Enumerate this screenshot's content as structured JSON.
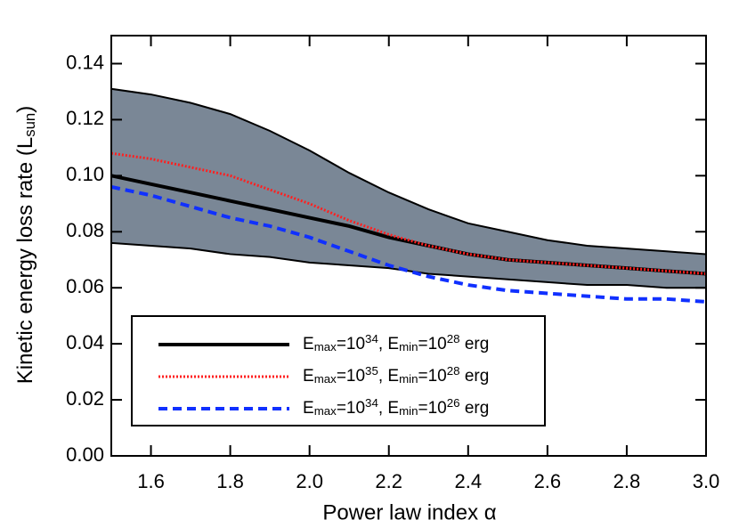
{
  "chart_data": {
    "type": "line",
    "x_label": "Power law index α",
    "y_label": "Kinetic energy loss rate (L_sun)",
    "x": [
      1.5,
      1.6,
      1.7,
      1.8,
      1.9,
      2.0,
      2.1,
      2.2,
      2.3,
      2.4,
      2.5,
      2.6,
      2.7,
      2.8,
      2.9,
      3.0
    ],
    "band": {
      "color": "#7a8796",
      "upper": [
        0.131,
        0.129,
        0.126,
        0.122,
        0.116,
        0.109,
        0.101,
        0.094,
        0.088,
        0.083,
        0.08,
        0.077,
        0.075,
        0.074,
        0.073,
        0.072
      ],
      "lower": [
        0.076,
        0.075,
        0.074,
        0.072,
        0.071,
        0.069,
        0.068,
        0.067,
        0.065,
        0.064,
        0.063,
        0.062,
        0.061,
        0.061,
        0.06,
        0.06
      ]
    },
    "series": [
      {
        "name": "E_max=10^34, E_min=10^28 erg",
        "color": "#000000",
        "style": "solid",
        "values": [
          0.1,
          0.097,
          0.094,
          0.091,
          0.088,
          0.085,
          0.082,
          0.078,
          0.075,
          0.072,
          0.07,
          0.069,
          0.068,
          0.067,
          0.066,
          0.065
        ]
      },
      {
        "name": "E_max=10^35, E_min=10^28 erg",
        "color": "#ff2020",
        "style": "dotted",
        "values": [
          0.108,
          0.106,
          0.103,
          0.1,
          0.095,
          0.09,
          0.084,
          0.079,
          0.075,
          0.072,
          0.07,
          0.069,
          0.068,
          0.067,
          0.066,
          0.065
        ]
      },
      {
        "name": "E_max=10^34, E_min=10^26 erg",
        "color": "#1030ff",
        "style": "dashed",
        "values": [
          0.096,
          0.093,
          0.089,
          0.085,
          0.082,
          0.078,
          0.073,
          0.068,
          0.064,
          0.061,
          0.059,
          0.058,
          0.057,
          0.056,
          0.056,
          0.055
        ]
      }
    ],
    "xlim": [
      1.5,
      3.0
    ],
    "ylim": [
      0.0,
      0.15
    ],
    "xticks": [
      1.6,
      1.8,
      {
        "value": 2.0,
        "label": "2.0"
      },
      2.2,
      2.4,
      2.6,
      2.8,
      {
        "value": 3.0,
        "label": "3.0"
      }
    ],
    "yticks": [
      {
        "value": 0.0,
        "label": "0.00"
      },
      0.02,
      0.04,
      0.06,
      0.08,
      {
        "value": 0.1,
        "label": "0.10"
      },
      0.12,
      0.14
    ]
  }
}
